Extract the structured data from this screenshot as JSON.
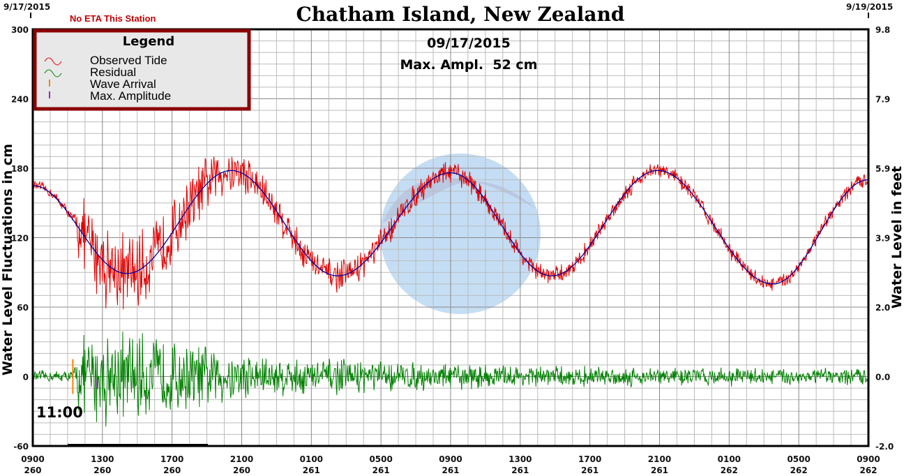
{
  "chart_data": {
    "type": "line",
    "title": "Chatham Island, New Zealand",
    "date_label": "09/17/2015",
    "max_ampl_label": "Max. Ampl.  52 cm",
    "eta_note": "No ETA This Station",
    "start_date": "9/17/2015",
    "end_date": "9/19/2015",
    "arrival_label": "11:00",
    "ylabel": "Water Level Fluctuations in cm",
    "ylabel_right": "Water Level in feet",
    "ylim": [
      -60,
      300
    ],
    "y_ticks": [
      "300",
      "240",
      "180",
      "120",
      "60",
      "0",
      "-60"
    ],
    "y_ticks_right": [
      "9.8",
      "7.9",
      "5.9",
      "3.9",
      "2.0",
      "0.0",
      "-2.0"
    ],
    "x_ticks": [
      {
        "time": "0900",
        "day": "260"
      },
      {
        "time": "1300",
        "day": "260"
      },
      {
        "time": "1700",
        "day": "260"
      },
      {
        "time": "2100",
        "day": "260"
      },
      {
        "time": "0100",
        "day": "261"
      },
      {
        "time": "0500",
        "day": "261"
      },
      {
        "time": "0900",
        "day": "261"
      },
      {
        "time": "1300",
        "day": "261"
      },
      {
        "time": "1700",
        "day": "261"
      },
      {
        "time": "2100",
        "day": "261"
      },
      {
        "time": "0100",
        "day": "262"
      },
      {
        "time": "0500",
        "day": "262"
      },
      {
        "time": "0900",
        "day": "262"
      }
    ],
    "x_range_hours": [
      0,
      48
    ],
    "grid": true,
    "legend": {
      "title": "Legend",
      "position": "top-left",
      "items": [
        {
          "label": "Observed Tide",
          "color": "#e00000"
        },
        {
          "label": "Residual",
          "color": "#008000"
        },
        {
          "label": "Wave Arrival",
          "color": "#ff8000"
        },
        {
          "label": "Max. Amplitude",
          "color": "#a020c0"
        }
      ]
    },
    "tide_extrema_hours_cm": [
      [
        0,
        165
      ],
      [
        5.4,
        89
      ],
      [
        11.4,
        178
      ],
      [
        17.5,
        87
      ],
      [
        24,
        176
      ],
      [
        29.8,
        87
      ],
      [
        35.9,
        178
      ],
      [
        42.5,
        80
      ],
      [
        48,
        170
      ]
    ],
    "residual_envelope_hours_cm": [
      [
        0,
        6
      ],
      [
        2.3,
        6
      ],
      [
        2.6,
        35
      ],
      [
        4,
        48
      ],
      [
        7,
        40
      ],
      [
        10,
        30
      ],
      [
        14,
        20
      ],
      [
        20,
        15
      ],
      [
        30,
        10
      ],
      [
        48,
        8
      ]
    ],
    "wave_arrival_hour": 2.3,
    "max_amplitude_hour": 3.7,
    "max_amplitude_cm": 52,
    "colors": {
      "observed": "#e00000",
      "predicted": "#0000a0",
      "residual": "#008000",
      "legend_border": "#8b0000",
      "eta_note": "#c00000"
    }
  }
}
